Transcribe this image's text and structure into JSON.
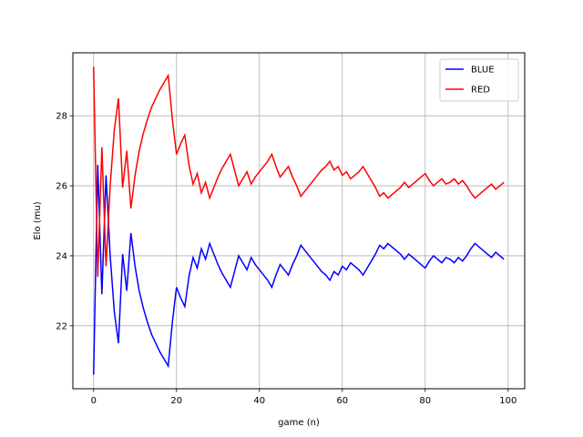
{
  "chart_data": {
    "type": "line",
    "title": "",
    "xlabel": "game (n)",
    "ylabel": "Elo (mu)",
    "xlim": [
      -5,
      104
    ],
    "ylim": [
      20.2,
      29.8
    ],
    "xticks": [
      0,
      20,
      40,
      60,
      80,
      100
    ],
    "yticks": [
      22,
      24,
      26,
      28
    ],
    "grid": true,
    "legend_position": "top-right",
    "series": [
      {
        "name": "BLUE",
        "color": "#0000ff",
        "points": [
          [
            0,
            20.6
          ],
          [
            1,
            26.6
          ],
          [
            2,
            22.9
          ],
          [
            3,
            26.3
          ],
          [
            4,
            24.0
          ],
          [
            5,
            22.4
          ],
          [
            6,
            21.5
          ],
          [
            7,
            24.05
          ],
          [
            8,
            23.0
          ],
          [
            9,
            24.65
          ],
          [
            10,
            23.7
          ],
          [
            11,
            23.0
          ],
          [
            12,
            22.5
          ],
          [
            13,
            22.1
          ],
          [
            14,
            21.75
          ],
          [
            15,
            21.5
          ],
          [
            16,
            21.25
          ],
          [
            17,
            21.05
          ],
          [
            18,
            20.85
          ],
          [
            19,
            22.1
          ],
          [
            20,
            23.1
          ],
          [
            21,
            22.8
          ],
          [
            22,
            22.55
          ],
          [
            23,
            23.4
          ],
          [
            24,
            23.95
          ],
          [
            25,
            23.65
          ],
          [
            26,
            24.2
          ],
          [
            27,
            23.9
          ],
          [
            28,
            24.35
          ],
          [
            29,
            24.05
          ],
          [
            30,
            23.75
          ],
          [
            31,
            23.5
          ],
          [
            32,
            23.3
          ],
          [
            33,
            23.1
          ],
          [
            34,
            23.55
          ],
          [
            35,
            24.0
          ],
          [
            36,
            23.8
          ],
          [
            37,
            23.6
          ],
          [
            38,
            23.95
          ],
          [
            39,
            23.75
          ],
          [
            40,
            23.6
          ],
          [
            41,
            23.45
          ],
          [
            42,
            23.3
          ],
          [
            43,
            23.1
          ],
          [
            44,
            23.45
          ],
          [
            45,
            23.75
          ],
          [
            46,
            23.6
          ],
          [
            47,
            23.45
          ],
          [
            48,
            23.75
          ],
          [
            49,
            24.0
          ],
          [
            50,
            24.3
          ],
          [
            51,
            24.15
          ],
          [
            52,
            24.0
          ],
          [
            53,
            23.85
          ],
          [
            54,
            23.7
          ],
          [
            55,
            23.55
          ],
          [
            56,
            23.45
          ],
          [
            57,
            23.3
          ],
          [
            58,
            23.55
          ],
          [
            59,
            23.45
          ],
          [
            60,
            23.7
          ],
          [
            61,
            23.6
          ],
          [
            62,
            23.8
          ],
          [
            63,
            23.7
          ],
          [
            64,
            23.6
          ],
          [
            65,
            23.45
          ],
          [
            66,
            23.65
          ],
          [
            67,
            23.85
          ],
          [
            68,
            24.05
          ],
          [
            69,
            24.3
          ],
          [
            70,
            24.2
          ],
          [
            71,
            24.35
          ],
          [
            72,
            24.25
          ],
          [
            73,
            24.15
          ],
          [
            74,
            24.05
          ],
          [
            75,
            23.9
          ],
          [
            76,
            24.05
          ],
          [
            77,
            23.95
          ],
          [
            78,
            23.85
          ],
          [
            79,
            23.75
          ],
          [
            80,
            23.65
          ],
          [
            81,
            23.85
          ],
          [
            82,
            24.0
          ],
          [
            83,
            23.9
          ],
          [
            84,
            23.8
          ],
          [
            85,
            23.95
          ],
          [
            86,
            23.9
          ],
          [
            87,
            23.8
          ],
          [
            88,
            23.95
          ],
          [
            89,
            23.85
          ],
          [
            90,
            24.0
          ],
          [
            91,
            24.2
          ],
          [
            92,
            24.35
          ],
          [
            93,
            24.25
          ],
          [
            94,
            24.15
          ],
          [
            95,
            24.05
          ],
          [
            96,
            23.95
          ],
          [
            97,
            24.1
          ],
          [
            98,
            24.0
          ],
          [
            99,
            23.9
          ]
        ]
      },
      {
        "name": "RED",
        "color": "#ff0000",
        "points": [
          [
            0,
            29.4
          ],
          [
            1,
            23.4
          ],
          [
            2,
            27.1
          ],
          [
            3,
            23.7
          ],
          [
            4,
            26.0
          ],
          [
            5,
            27.6
          ],
          [
            6,
            28.5
          ],
          [
            7,
            25.95
          ],
          [
            8,
            27.0
          ],
          [
            9,
            25.35
          ],
          [
            10,
            26.3
          ],
          [
            11,
            27.0
          ],
          [
            12,
            27.5
          ],
          [
            13,
            27.9
          ],
          [
            14,
            28.25
          ],
          [
            15,
            28.5
          ],
          [
            16,
            28.75
          ],
          [
            17,
            28.95
          ],
          [
            18,
            29.15
          ],
          [
            19,
            27.9
          ],
          [
            20,
            26.9
          ],
          [
            21,
            27.2
          ],
          [
            22,
            27.45
          ],
          [
            23,
            26.6
          ],
          [
            24,
            26.05
          ],
          [
            25,
            26.35
          ],
          [
            26,
            25.8
          ],
          [
            27,
            26.1
          ],
          [
            28,
            25.65
          ],
          [
            29,
            25.95
          ],
          [
            30,
            26.25
          ],
          [
            31,
            26.5
          ],
          [
            32,
            26.7
          ],
          [
            33,
            26.9
          ],
          [
            34,
            26.45
          ],
          [
            35,
            26.0
          ],
          [
            36,
            26.2
          ],
          [
            37,
            26.4
          ],
          [
            38,
            26.05
          ],
          [
            39,
            26.25
          ],
          [
            40,
            26.4
          ],
          [
            41,
            26.55
          ],
          [
            42,
            26.7
          ],
          [
            43,
            26.9
          ],
          [
            44,
            26.55
          ],
          [
            45,
            26.25
          ],
          [
            46,
            26.4
          ],
          [
            47,
            26.55
          ],
          [
            48,
            26.25
          ],
          [
            49,
            26.0
          ],
          [
            50,
            25.7
          ],
          [
            51,
            25.85
          ],
          [
            52,
            26.0
          ],
          [
            53,
            26.15
          ],
          [
            54,
            26.3
          ],
          [
            55,
            26.45
          ],
          [
            56,
            26.55
          ],
          [
            57,
            26.7
          ],
          [
            58,
            26.45
          ],
          [
            59,
            26.55
          ],
          [
            60,
            26.3
          ],
          [
            61,
            26.4
          ],
          [
            62,
            26.2
          ],
          [
            63,
            26.3
          ],
          [
            64,
            26.4
          ],
          [
            65,
            26.55
          ],
          [
            66,
            26.35
          ],
          [
            67,
            26.15
          ],
          [
            68,
            25.95
          ],
          [
            69,
            25.7
          ],
          [
            70,
            25.8
          ],
          [
            71,
            25.65
          ],
          [
            72,
            25.75
          ],
          [
            73,
            25.85
          ],
          [
            74,
            25.95
          ],
          [
            75,
            26.1
          ],
          [
            76,
            25.95
          ],
          [
            77,
            26.05
          ],
          [
            78,
            26.15
          ],
          [
            79,
            26.25
          ],
          [
            80,
            26.35
          ],
          [
            81,
            26.15
          ],
          [
            82,
            26.0
          ],
          [
            83,
            26.1
          ],
          [
            84,
            26.2
          ],
          [
            85,
            26.05
          ],
          [
            86,
            26.1
          ],
          [
            87,
            26.2
          ],
          [
            88,
            26.05
          ],
          [
            89,
            26.15
          ],
          [
            90,
            26.0
          ],
          [
            91,
            25.8
          ],
          [
            92,
            25.65
          ],
          [
            93,
            25.75
          ],
          [
            94,
            25.85
          ],
          [
            95,
            25.95
          ],
          [
            96,
            26.05
          ],
          [
            97,
            25.9
          ],
          [
            98,
            26.0
          ],
          [
            99,
            26.1
          ]
        ]
      }
    ]
  }
}
